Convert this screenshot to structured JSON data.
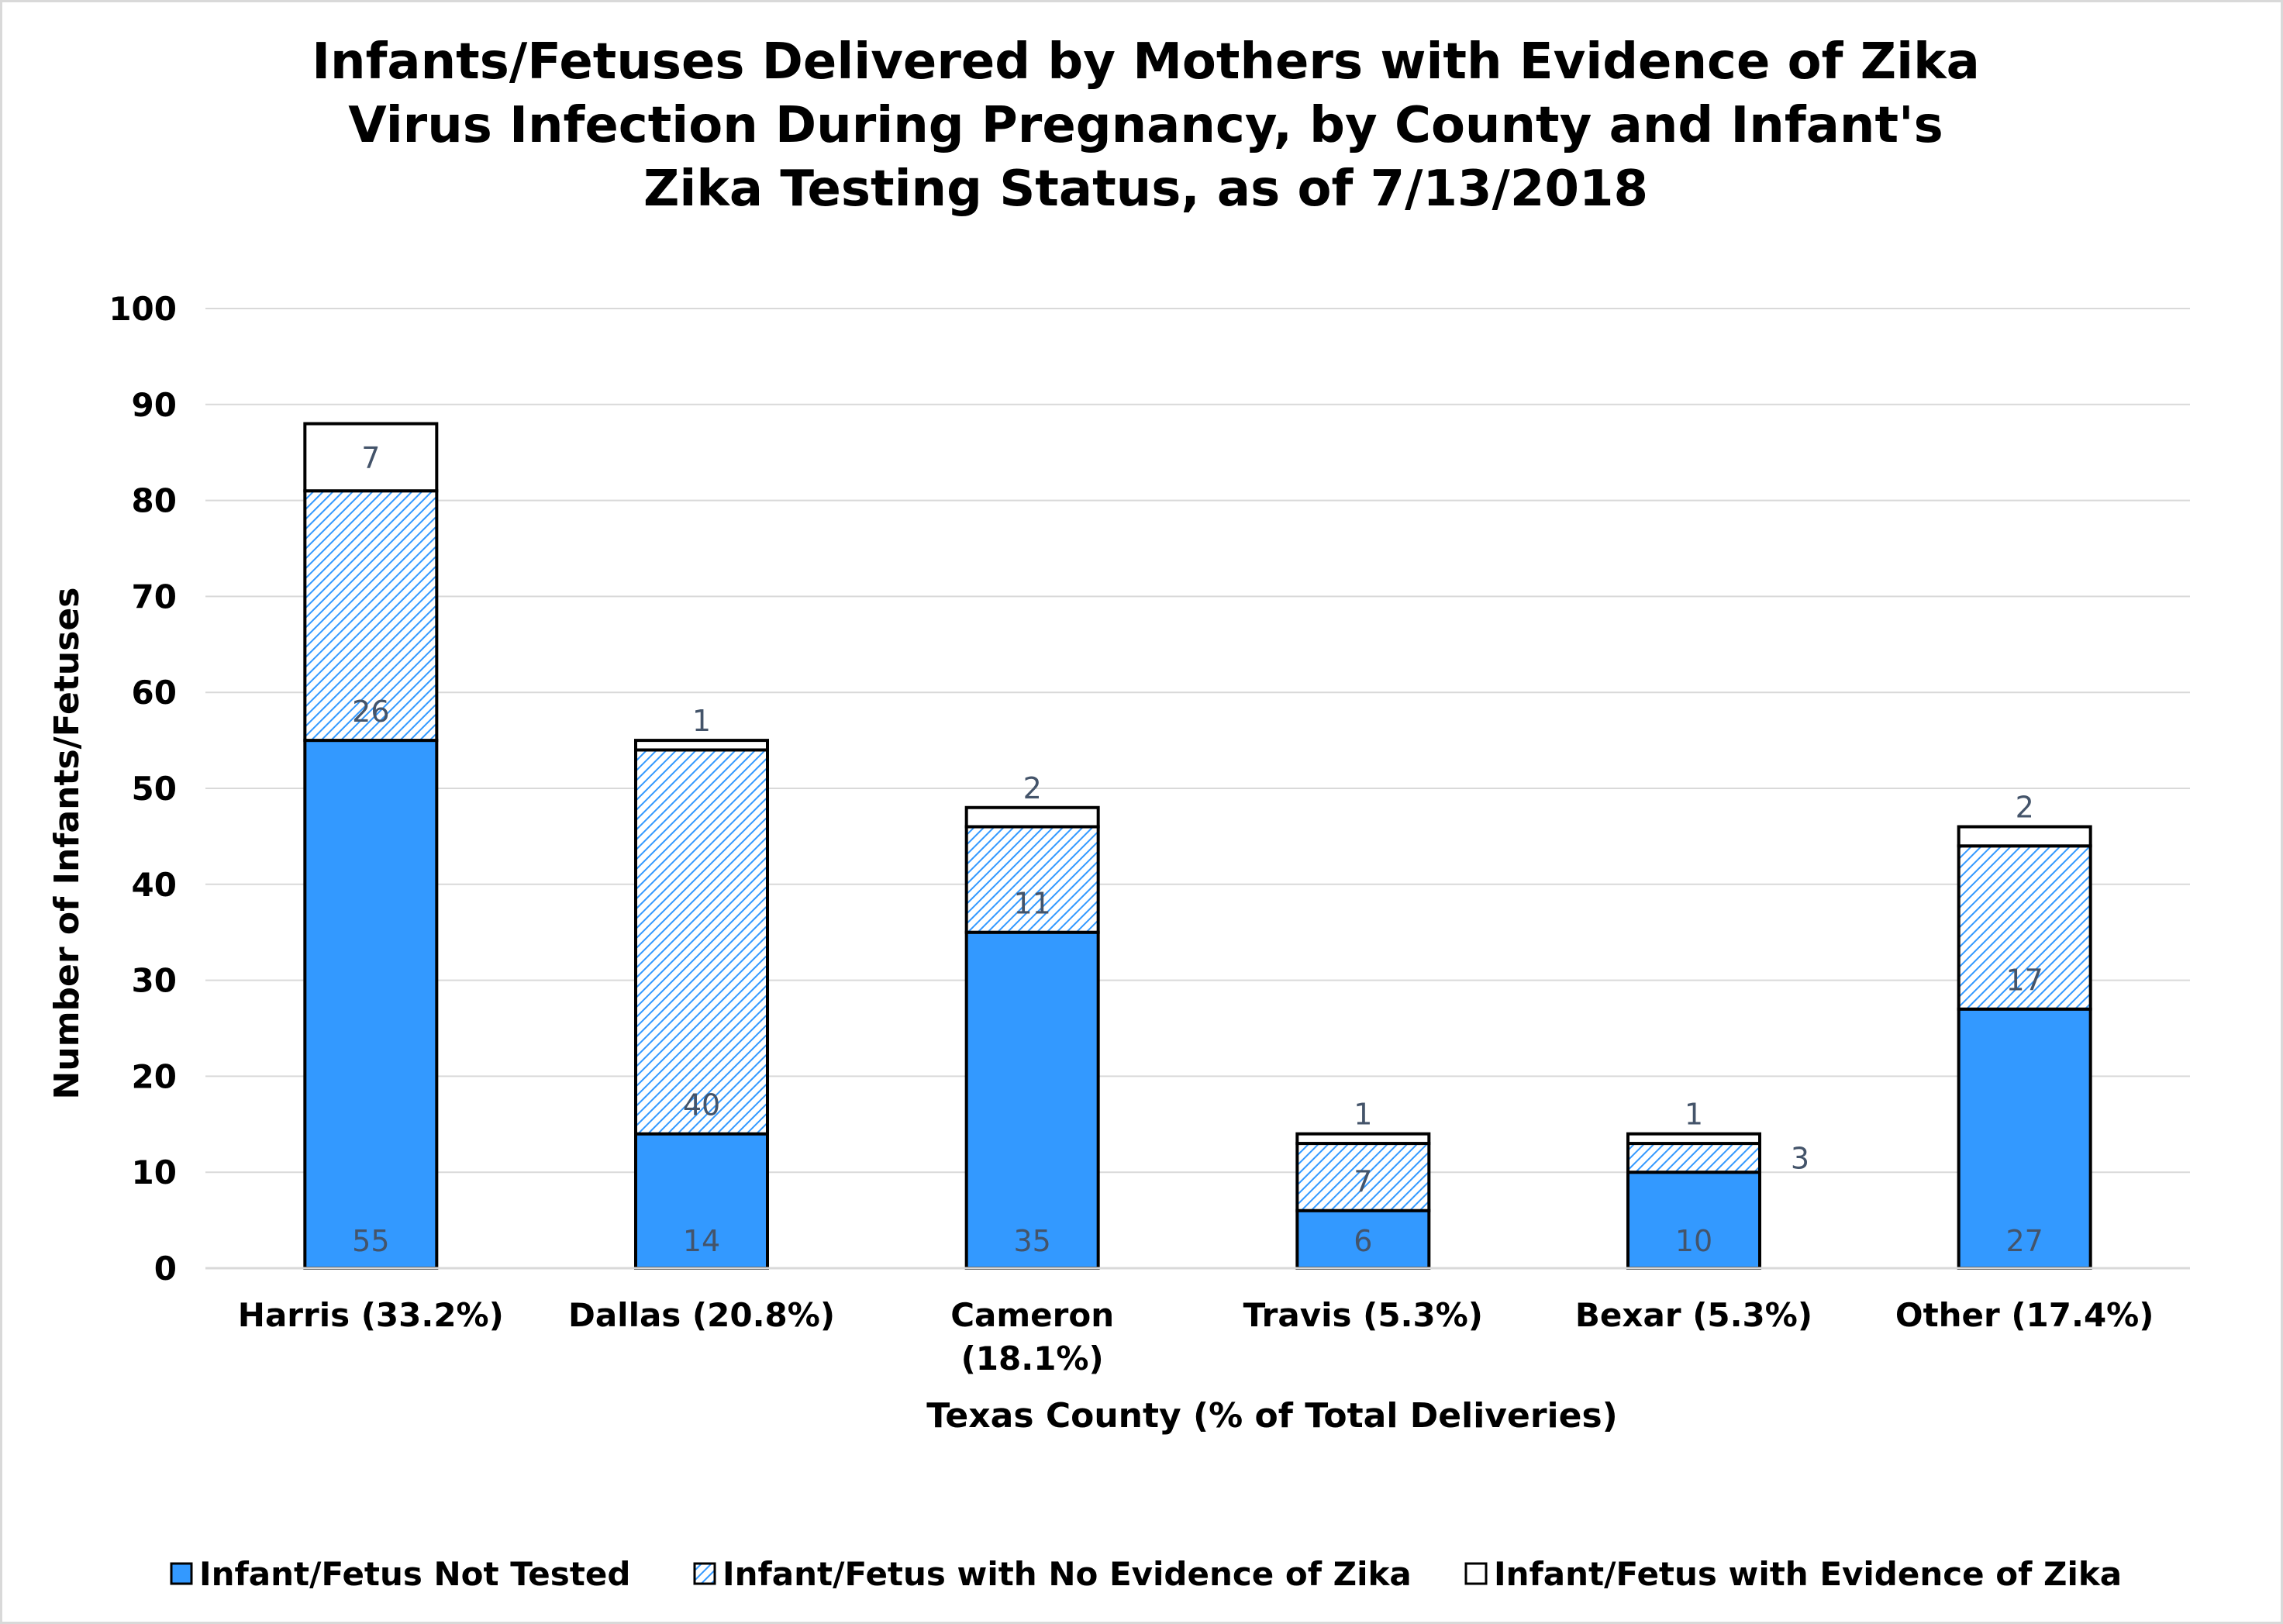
{
  "chart_data": {
    "type": "bar",
    "stacked": true,
    "title_lines": [
      "Infants/Fetuses Delivered by Mothers with Evidence of Zika",
      "Virus Infection During Pregnancy, by County and Infant's",
      "Zika Testing Status, as of 7/13/2018"
    ],
    "xlabel": "Texas County (% of Total Deliveries)",
    "ylabel": "Number of Infants/Fetuses",
    "ylim": [
      0,
      100
    ],
    "yticks": [
      "0",
      "10",
      "20",
      "30",
      "40",
      "50",
      "60",
      "70",
      "80",
      "90",
      "100"
    ],
    "grid": true,
    "legend_position": "bottom",
    "categories": [
      [
        "Harris (33.2%)"
      ],
      [
        "Dallas (20.8%)"
      ],
      [
        "Cameron",
        "(18.1%)"
      ],
      [
        "Travis (5.3%)"
      ],
      [
        "Bexar (5.3%)"
      ],
      [
        "Other (17.4%)"
      ]
    ],
    "series": [
      {
        "name": "Infant/Fetus Not Tested",
        "style": "solid",
        "color": "#3399ff",
        "values": [
          55,
          14,
          35,
          6,
          10,
          27
        ],
        "labels": [
          "55",
          "14",
          "35",
          "6",
          "10",
          "27"
        ]
      },
      {
        "name": "Infant/Fetus with No Evidence of Zika",
        "style": "hatched",
        "color": "#3399ff",
        "values": [
          26,
          40,
          11,
          7,
          3,
          17
        ],
        "labels": [
          "26",
          "40",
          "11",
          "7",
          "3",
          "17"
        ]
      },
      {
        "name": "Infant/Fetus with Evidence of Zika",
        "style": "white",
        "color": "#ffffff",
        "values": [
          7,
          1,
          2,
          1,
          1,
          2
        ],
        "labels": [
          "7",
          "1",
          "2",
          "1",
          "1",
          "2"
        ]
      }
    ]
  }
}
